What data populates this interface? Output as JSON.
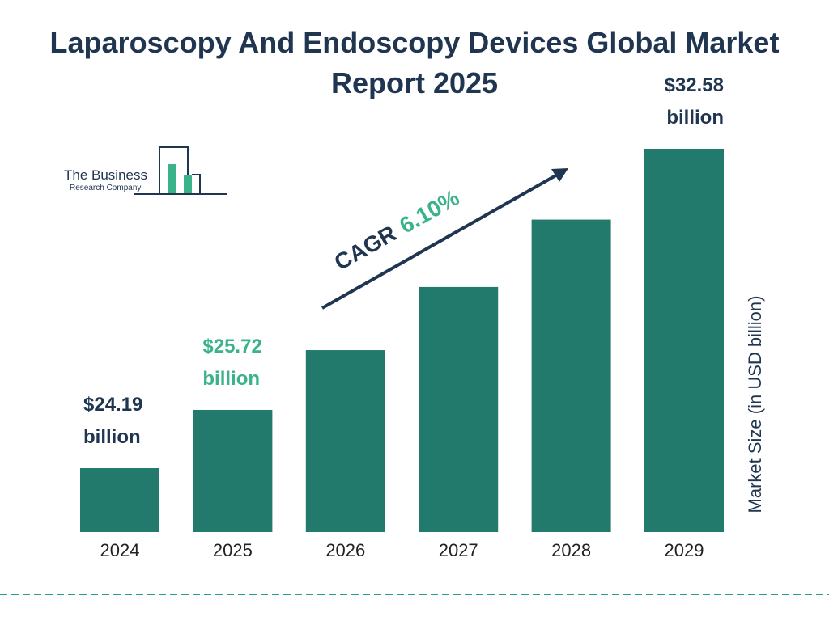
{
  "chart_data": {
    "type": "bar",
    "title": "Laparoscopy And Endoscopy Devices Global Market Report 2025",
    "y_label": "Market Size (in USD billion)",
    "categories": [
      "2024",
      "2025",
      "2026",
      "2027",
      "2028",
      "2029"
    ],
    "values": [
      24.19,
      25.72,
      27.29,
      28.95,
      30.72,
      32.58
    ],
    "value_labels": [
      "$24.19 billion",
      "$25.72 billion",
      null,
      null,
      null,
      "$32.58 billion"
    ],
    "value_label_colors": [
      "#1f3550",
      "#3bb38a",
      null,
      null,
      null,
      "#1f3550"
    ],
    "color": "#217a6b",
    "annotation": {
      "label": "CAGR",
      "value": "6.10%",
      "label_color": "#1f3550",
      "value_color": "#3bb38a"
    }
  },
  "logo": {
    "name": "The Business",
    "subname": "Research Company"
  }
}
